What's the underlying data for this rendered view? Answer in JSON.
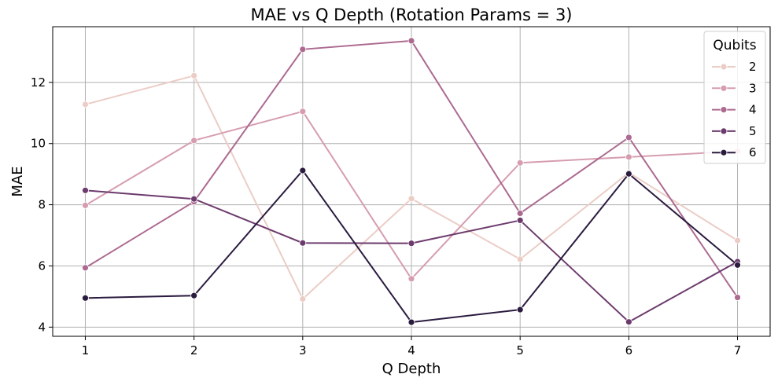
{
  "chart_data": {
    "type": "line",
    "title": "MAE vs Q Depth (Rotation Params = 3)",
    "xlabel": "Q Depth",
    "ylabel": "MAE",
    "x": [
      1,
      2,
      3,
      4,
      5,
      6,
      7
    ],
    "xlim": [
      0.7,
      7.3
    ],
    "ylim": [
      3.7,
      13.82
    ],
    "xticks": [
      "1",
      "2",
      "3",
      "4",
      "5",
      "6",
      "7"
    ],
    "yticks": [
      4,
      6,
      8,
      10,
      12
    ],
    "grid": true,
    "legend": {
      "title": "Qubits",
      "placement": "top-right"
    },
    "series": [
      {
        "name": "2",
        "color": "#ebcdc6",
        "values": [
          11.28,
          12.22,
          4.92,
          8.2,
          6.22,
          9.05,
          6.83
        ]
      },
      {
        "name": "3",
        "color": "#d69daf",
        "values": [
          7.98,
          10.1,
          11.05,
          5.58,
          9.37,
          9.56,
          9.75
        ]
      },
      {
        "name": "4",
        "color": "#ac6a90",
        "values": [
          5.94,
          8.1,
          13.08,
          13.36,
          7.72,
          10.2,
          4.97
        ]
      },
      {
        "name": "5",
        "color": "#6c3b6d",
        "values": [
          8.47,
          8.19,
          6.75,
          6.74,
          7.49,
          4.17,
          6.14
        ]
      },
      {
        "name": "6",
        "color": "#2b1b3f",
        "values": [
          4.95,
          5.03,
          9.12,
          4.16,
          4.57,
          9.01,
          6.03
        ]
      }
    ]
  }
}
